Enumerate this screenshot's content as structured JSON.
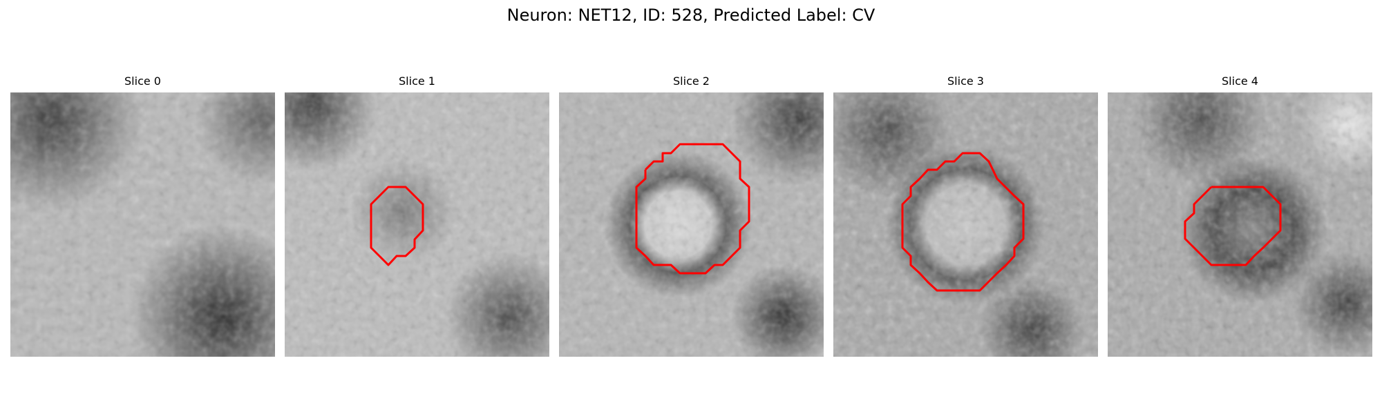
{
  "figure": {
    "title": "Neuron: NET12, ID: 528, Predicted Label: CV"
  },
  "slices": [
    {
      "label": "Slice 0",
      "contour": false,
      "contour_color": "#ff0000"
    },
    {
      "label": "Slice 1",
      "contour": true,
      "contour_color": "#ff0000"
    },
    {
      "label": "Slice 2",
      "contour": true,
      "contour_color": "#ff0000"
    },
    {
      "label": "Slice 3",
      "contour": true,
      "contour_color": "#ff0000"
    },
    {
      "label": "Slice 4",
      "contour": true,
      "contour_color": "#ff0000"
    }
  ]
}
